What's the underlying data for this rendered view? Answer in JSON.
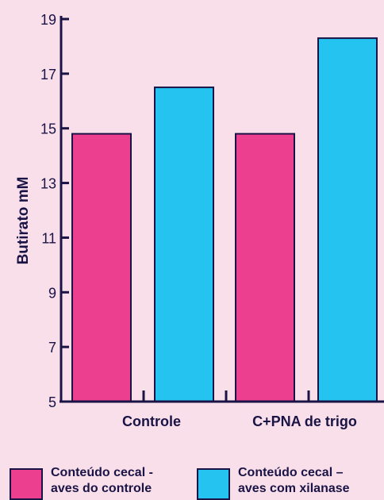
{
  "chart_data": {
    "type": "bar",
    "title": "",
    "xlabel": "",
    "ylabel": "Butirato mM",
    "categories": [
      "Controle",
      "C+PNA de trigo"
    ],
    "series": [
      {
        "name": "Conteúdo cecal - aves do controle",
        "values": [
          14.8,
          14.8
        ]
      },
      {
        "name": "Conteúdo cecal – aves com xilanase",
        "values": [
          16.5,
          18.3
        ]
      }
    ],
    "ylim": [
      5,
      19
    ],
    "yticks": [
      5,
      7,
      9,
      11,
      13,
      15,
      17,
      19
    ],
    "grid": false,
    "legend_position": "bottom"
  },
  "legend": {
    "items": [
      {
        "lines": [
          "Conteúdo cecal -",
          "aves do controle"
        ],
        "color": "#ec3f8f"
      },
      {
        "lines": [
          "Conteúdo cecal –",
          "aves com xilanase"
        ],
        "color": "#25c3f0"
      }
    ]
  },
  "colors": {
    "background": "#f9dfe9",
    "axis": "#1a1446",
    "series": [
      "#ec3f8f",
      "#25c3f0"
    ]
  }
}
